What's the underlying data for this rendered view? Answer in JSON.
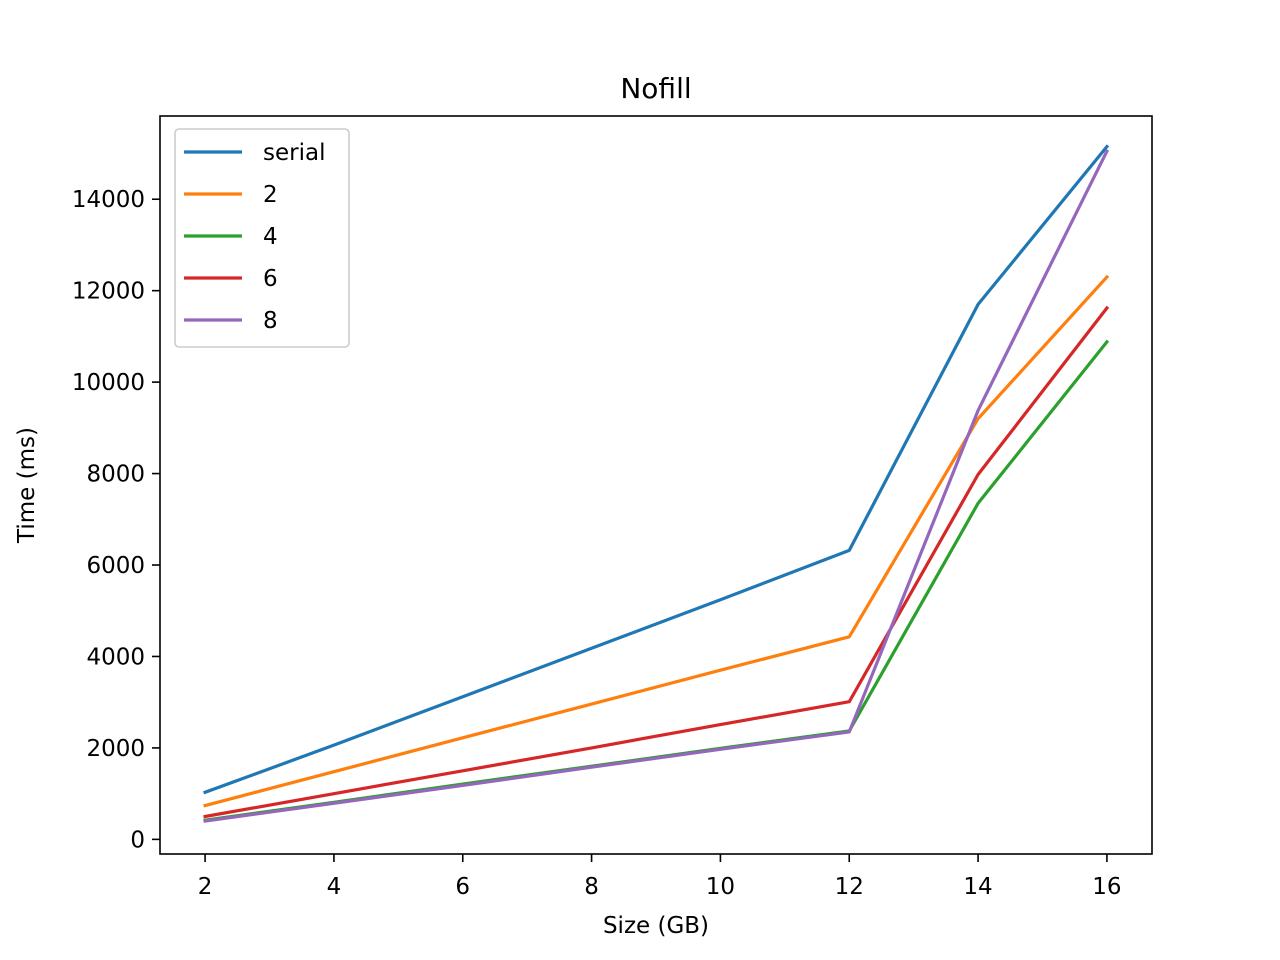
{
  "chart_data": {
    "type": "line",
    "title": "Nofill",
    "xlabel": "Size (GB)",
    "ylabel": "Time (ms)",
    "x": [
      2,
      4,
      6,
      8,
      10,
      12,
      14,
      16
    ],
    "xticks": [
      2,
      4,
      6,
      8,
      10,
      12,
      14,
      16
    ],
    "yticks": [
      0,
      2000,
      4000,
      6000,
      8000,
      10000,
      12000,
      14000
    ],
    "xlim": [
      1.3,
      16.7
    ],
    "ylim": [
      -320,
      15820
    ],
    "grid": false,
    "legend_position": "upper-left",
    "series": [
      {
        "name": "serial",
        "color": "#1f77b4",
        "values": [
          1030,
          2060,
          3120,
          4180,
          5240,
          6320,
          11700,
          15150
        ]
      },
      {
        "name": "2",
        "color": "#ff7f0e",
        "values": [
          740,
          1480,
          2220,
          2960,
          3700,
          4430,
          9200,
          12300
        ]
      },
      {
        "name": "4",
        "color": "#2ca02c",
        "values": [
          420,
          810,
          1210,
          1600,
          1990,
          2370,
          7350,
          10880
        ]
      },
      {
        "name": "6",
        "color": "#d62728",
        "values": [
          500,
          1000,
          1500,
          2000,
          2510,
          3010,
          7980,
          11620
        ]
      },
      {
        "name": "8",
        "color": "#9467bd",
        "values": [
          400,
          790,
          1180,
          1580,
          1970,
          2350,
          9380,
          15050
        ]
      }
    ]
  }
}
